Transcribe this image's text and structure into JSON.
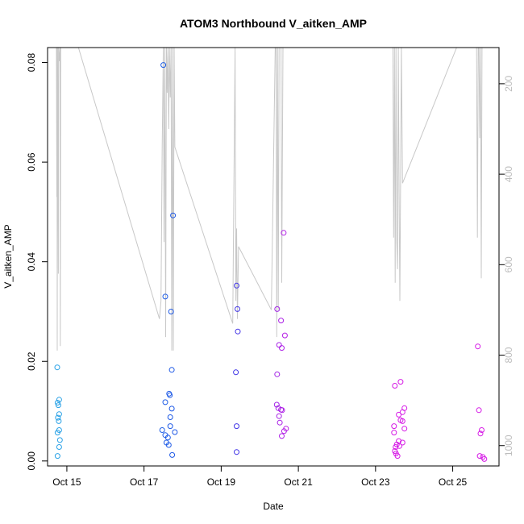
{
  "chart_data": {
    "type": "scatter",
    "title": "ATOM3 Northbound V_aitken_AMP",
    "xlabel": "Date",
    "ylabel": "V_aitken_AMP",
    "x_ticks": [
      "Oct 15",
      "Oct 17",
      "Oct 19",
      "Oct 21",
      "Oct 23",
      "Oct 25"
    ],
    "x_tick_values": [
      15,
      17,
      19,
      21,
      23,
      25
    ],
    "xlim": [
      14.5,
      26.2
    ],
    "ylim": [
      -0.001,
      0.083
    ],
    "y_ticks": [
      0.0,
      0.02,
      0.04,
      0.06,
      0.08
    ],
    "y_tick_labels": [
      "0.00",
      "0.02",
      "0.04",
      "0.06",
      "0.08"
    ],
    "y2_ticks": [
      200,
      400,
      600,
      800,
      1000
    ],
    "y2_tick_labels": [
      "200",
      "400",
      "600",
      "800",
      "1000"
    ],
    "y2lim": [
      1045,
      120
    ],
    "y2_reversed": true,
    "grid": false,
    "colors": {
      "point_start": "#29a3e6",
      "point_mid": "#1a3ae6",
      "point_end": "#d61ae6",
      "secondary_line": "#c8c8c8",
      "axis": "#000000"
    },
    "points": [
      {
        "x": 14.75,
        "y": 0.0188
      },
      {
        "x": 14.76,
        "y": 0.0117
      },
      {
        "x": 14.78,
        "y": 0.0112
      },
      {
        "x": 14.8,
        "y": 0.0123
      },
      {
        "x": 14.77,
        "y": 0.0087
      },
      {
        "x": 14.79,
        "y": 0.008
      },
      {
        "x": 14.8,
        "y": 0.0094
      },
      {
        "x": 14.76,
        "y": 0.0057
      },
      {
        "x": 14.8,
        "y": 0.0062
      },
      {
        "x": 14.82,
        "y": 0.0042
      },
      {
        "x": 14.8,
        "y": 0.0028
      },
      {
        "x": 14.76,
        "y": 0.001
      },
      {
        "x": 17.5,
        "y": 0.0795
      },
      {
        "x": 17.55,
        "y": 0.033
      },
      {
        "x": 17.7,
        "y": 0.03
      },
      {
        "x": 17.75,
        "y": 0.0493
      },
      {
        "x": 17.72,
        "y": 0.0183
      },
      {
        "x": 17.55,
        "y": 0.0118
      },
      {
        "x": 17.65,
        "y": 0.0135
      },
      {
        "x": 17.67,
        "y": 0.0132
      },
      {
        "x": 17.72,
        "y": 0.0105
      },
      {
        "x": 17.68,
        "y": 0.0088
      },
      {
        "x": 17.68,
        "y": 0.007
      },
      {
        "x": 17.47,
        "y": 0.0062
      },
      {
        "x": 17.8,
        "y": 0.0058
      },
      {
        "x": 17.55,
        "y": 0.0052
      },
      {
        "x": 17.62,
        "y": 0.0047
      },
      {
        "x": 17.58,
        "y": 0.0037
      },
      {
        "x": 17.64,
        "y": 0.0032
      },
      {
        "x": 17.73,
        "y": 0.0012
      },
      {
        "x": 19.4,
        "y": 0.0352
      },
      {
        "x": 19.42,
        "y": 0.0305
      },
      {
        "x": 19.43,
        "y": 0.026
      },
      {
        "x": 19.38,
        "y": 0.0178
      },
      {
        "x": 19.4,
        "y": 0.007
      },
      {
        "x": 19.4,
        "y": 0.0018
      },
      {
        "x": 20.45,
        "y": 0.0305
      },
      {
        "x": 20.62,
        "y": 0.0458
      },
      {
        "x": 20.55,
        "y": 0.0282
      },
      {
        "x": 20.65,
        "y": 0.0252
      },
      {
        "x": 20.5,
        "y": 0.0233
      },
      {
        "x": 20.57,
        "y": 0.0227
      },
      {
        "x": 20.45,
        "y": 0.0174
      },
      {
        "x": 20.44,
        "y": 0.0113
      },
      {
        "x": 20.48,
        "y": 0.0106
      },
      {
        "x": 20.55,
        "y": 0.0103
      },
      {
        "x": 20.58,
        "y": 0.0102
      },
      {
        "x": 20.5,
        "y": 0.009
      },
      {
        "x": 20.52,
        "y": 0.0077
      },
      {
        "x": 20.68,
        "y": 0.0065
      },
      {
        "x": 20.63,
        "y": 0.006
      },
      {
        "x": 20.57,
        "y": 0.005
      },
      {
        "x": 23.5,
        "y": 0.0151
      },
      {
        "x": 23.65,
        "y": 0.0159
      },
      {
        "x": 23.75,
        "y": 0.0106
      },
      {
        "x": 23.7,
        "y": 0.0098
      },
      {
        "x": 23.6,
        "y": 0.0093
      },
      {
        "x": 23.65,
        "y": 0.0082
      },
      {
        "x": 23.7,
        "y": 0.008
      },
      {
        "x": 23.48,
        "y": 0.007
      },
      {
        "x": 23.75,
        "y": 0.0065
      },
      {
        "x": 23.48,
        "y": 0.0057
      },
      {
        "x": 23.6,
        "y": 0.004
      },
      {
        "x": 23.7,
        "y": 0.0037
      },
      {
        "x": 23.55,
        "y": 0.0033
      },
      {
        "x": 23.52,
        "y": 0.0028
      },
      {
        "x": 23.62,
        "y": 0.003
      },
      {
        "x": 23.5,
        "y": 0.002
      },
      {
        "x": 23.53,
        "y": 0.0015
      },
      {
        "x": 23.57,
        "y": 0.001
      },
      {
        "x": 25.65,
        "y": 0.023
      },
      {
        "x": 25.68,
        "y": 0.0102
      },
      {
        "x": 25.75,
        "y": 0.0062
      },
      {
        "x": 25.72,
        "y": 0.0055
      },
      {
        "x": 25.7,
        "y": 0.001
      },
      {
        "x": 25.78,
        "y": 0.0008
      },
      {
        "x": 25.82,
        "y": 0.0004
      }
    ],
    "secondary_line": [
      {
        "x": 14.73,
        "y2": 120
      },
      {
        "x": 14.74,
        "y2": 450
      },
      {
        "x": 14.745,
        "y2": 120
      },
      {
        "x": 14.75,
        "y2": 790
      },
      {
        "x": 14.76,
        "y2": 120
      },
      {
        "x": 14.78,
        "y2": 620
      },
      {
        "x": 14.785,
        "y2": 120
      },
      {
        "x": 14.8,
        "y2": 150
      },
      {
        "x": 14.82,
        "y2": 120
      },
      {
        "x": 14.83,
        "y2": 780
      },
      {
        "x": 14.84,
        "y2": 120
      },
      {
        "x": 14.86,
        "y2": 120
      },
      {
        "x": 15.3,
        "y2": 120
      },
      {
        "x": 17.4,
        "y2": 720
      },
      {
        "x": 17.44,
        "y2": 680
      },
      {
        "x": 17.47,
        "y2": 340
      },
      {
        "x": 17.5,
        "y2": 120
      },
      {
        "x": 17.52,
        "y2": 550
      },
      {
        "x": 17.54,
        "y2": 120
      },
      {
        "x": 17.56,
        "y2": 760
      },
      {
        "x": 17.58,
        "y2": 120
      },
      {
        "x": 17.6,
        "y2": 220
      },
      {
        "x": 17.62,
        "y2": 120
      },
      {
        "x": 17.64,
        "y2": 300
      },
      {
        "x": 17.66,
        "y2": 120
      },
      {
        "x": 17.68,
        "y2": 230
      },
      {
        "x": 17.7,
        "y2": 120
      },
      {
        "x": 17.72,
        "y2": 790
      },
      {
        "x": 17.74,
        "y2": 120
      },
      {
        "x": 17.76,
        "y2": 790
      },
      {
        "x": 17.78,
        "y2": 120
      },
      {
        "x": 17.8,
        "y2": 340
      },
      {
        "x": 19.3,
        "y2": 730
      },
      {
        "x": 19.36,
        "y2": 120
      },
      {
        "x": 19.38,
        "y2": 680
      },
      {
        "x": 19.4,
        "y2": 520
      },
      {
        "x": 19.42,
        "y2": 720
      },
      {
        "x": 19.45,
        "y2": 560
      },
      {
        "x": 20.3,
        "y2": 700
      },
      {
        "x": 20.4,
        "y2": 120
      },
      {
        "x": 20.42,
        "y2": 120
      },
      {
        "x": 20.44,
        "y2": 760
      },
      {
        "x": 20.46,
        "y2": 120
      },
      {
        "x": 20.48,
        "y2": 700
      },
      {
        "x": 20.5,
        "y2": 120
      },
      {
        "x": 20.55,
        "y2": 120
      },
      {
        "x": 20.57,
        "y2": 640
      },
      {
        "x": 20.6,
        "y2": 120
      },
      {
        "x": 20.65,
        "y2": 120
      },
      {
        "x": 23.45,
        "y2": 120
      },
      {
        "x": 23.47,
        "y2": 540
      },
      {
        "x": 23.49,
        "y2": 120
      },
      {
        "x": 23.51,
        "y2": 640
      },
      {
        "x": 23.53,
        "y2": 120
      },
      {
        "x": 23.55,
        "y2": 550
      },
      {
        "x": 23.57,
        "y2": 610
      },
      {
        "x": 23.59,
        "y2": 120
      },
      {
        "x": 23.61,
        "y2": 430
      },
      {
        "x": 23.63,
        "y2": 680
      },
      {
        "x": 23.65,
        "y2": 420
      },
      {
        "x": 23.67,
        "y2": 120
      },
      {
        "x": 23.7,
        "y2": 420
      },
      {
        "x": 25.1,
        "y2": 120
      },
      {
        "x": 25.6,
        "y2": 120
      },
      {
        "x": 25.62,
        "y2": 120
      },
      {
        "x": 25.64,
        "y2": 540
      },
      {
        "x": 25.66,
        "y2": 120
      },
      {
        "x": 25.68,
        "y2": 120
      },
      {
        "x": 25.7,
        "y2": 320
      },
      {
        "x": 25.72,
        "y2": 120
      },
      {
        "x": 25.74,
        "y2": 630
      },
      {
        "x": 25.76,
        "y2": 120
      },
      {
        "x": 25.78,
        "y2": 120
      }
    ]
  }
}
